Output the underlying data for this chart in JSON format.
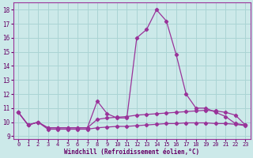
{
  "xlabel": "Windchill (Refroidissement éolien,°C)",
  "background_color": "#cce9e9",
  "grid_color": "#aad4d4",
  "line_color": "#993399",
  "hours": [
    0,
    1,
    2,
    3,
    4,
    5,
    6,
    7,
    8,
    9,
    10,
    11,
    12,
    13,
    14,
    15,
    16,
    17,
    18,
    19,
    20,
    21,
    22,
    23
  ],
  "main_line": [
    10.7,
    9.8,
    10.0,
    9.6,
    9.6,
    9.6,
    9.6,
    9.6,
    11.5,
    10.6,
    10.3,
    10.3,
    16.0,
    16.6,
    18.0,
    17.2,
    14.8,
    12.0,
    11.0,
    11.0,
    10.7,
    10.4,
    9.9,
    9.8
  ],
  "line2": [
    10.7,
    9.8,
    10.0,
    9.6,
    9.6,
    9.6,
    9.6,
    9.6,
    10.2,
    10.3,
    10.35,
    10.4,
    10.5,
    10.55,
    10.6,
    10.65,
    10.7,
    10.75,
    10.8,
    10.85,
    10.8,
    10.7,
    10.5,
    9.8
  ],
  "line3": [
    10.7,
    9.8,
    10.0,
    9.5,
    9.5,
    9.5,
    9.5,
    9.5,
    9.6,
    9.65,
    9.7,
    9.7,
    9.75,
    9.8,
    9.85,
    9.9,
    9.9,
    9.95,
    9.95,
    9.95,
    9.9,
    9.9,
    9.85,
    9.75
  ],
  "ylim": [
    8.8,
    18.5
  ],
  "xlim": [
    -0.5,
    23.5
  ],
  "yticks": [
    9,
    10,
    11,
    12,
    13,
    14,
    15,
    16,
    17,
    18
  ],
  "xticks": [
    0,
    1,
    2,
    3,
    4,
    5,
    6,
    7,
    8,
    9,
    10,
    11,
    12,
    13,
    14,
    15,
    16,
    17,
    18,
    19,
    20,
    21,
    22,
    23
  ]
}
